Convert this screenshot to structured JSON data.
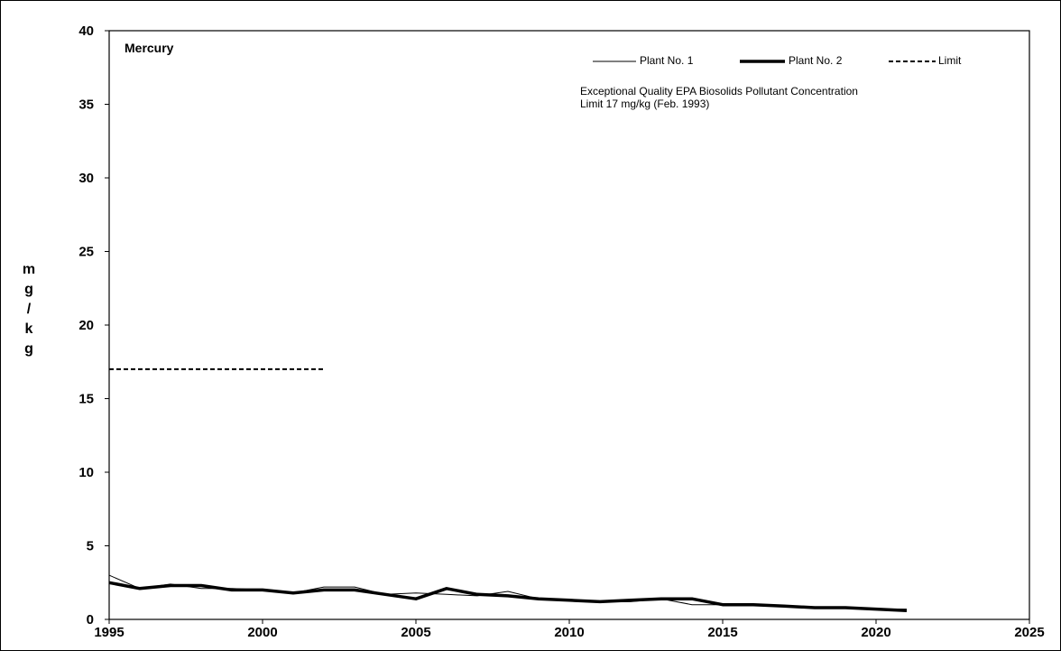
{
  "chart_data": {
    "type": "line",
    "title": "Mercury",
    "ylabel": "mg/kg",
    "ylabel_letters": [
      "m",
      "g",
      "/",
      "k",
      "g"
    ],
    "xlim": [
      1995,
      2025
    ],
    "ylim": [
      0,
      40
    ],
    "x_ticks": [
      "1995",
      "2000",
      "2005",
      "2010",
      "2015",
      "2020",
      "2025"
    ],
    "y_ticks": [
      "0",
      "5",
      "10",
      "15",
      "20",
      "25",
      "30",
      "35",
      "40"
    ],
    "legend_position": "top-right",
    "grid": false,
    "annotation": "Exceptional Quality EPA Biosolids Pollutant Concentration\nLimit 17 mg/kg (Feb. 1993)",
    "series": [
      {
        "name": "Plant No. 1",
        "style": "thin",
        "color": "#000000",
        "x": [
          1995,
          1996,
          1997,
          1998,
          1999,
          2000,
          2001,
          2002,
          2003,
          2004,
          2005,
          2006,
          2007,
          2008,
          2009,
          2010,
          2011,
          2012,
          2013,
          2014,
          2015,
          2016,
          2017,
          2018,
          2019,
          2020,
          2021
        ],
        "values": [
          3.0,
          2.1,
          2.4,
          2.1,
          2.1,
          2.0,
          1.8,
          2.2,
          2.2,
          1.7,
          1.8,
          1.7,
          1.6,
          1.9,
          1.4,
          1.3,
          1.2,
          1.2,
          1.4,
          1.0,
          1.0,
          1.0,
          0.9,
          0.8,
          0.8,
          0.7,
          0.7
        ]
      },
      {
        "name": "Plant No. 2",
        "style": "thick",
        "color": "#000000",
        "x": [
          1995,
          1996,
          1997,
          1998,
          1999,
          2000,
          2001,
          2002,
          2003,
          2004,
          2005,
          2006,
          2007,
          2008,
          2009,
          2010,
          2011,
          2012,
          2013,
          2014,
          2015,
          2016,
          2017,
          2018,
          2019,
          2020,
          2021
        ],
        "values": [
          2.5,
          2.1,
          2.3,
          2.3,
          2.0,
          2.0,
          1.8,
          2.0,
          2.0,
          1.7,
          1.4,
          2.1,
          1.7,
          1.6,
          1.4,
          1.3,
          1.2,
          1.3,
          1.4,
          1.4,
          1.0,
          1.0,
          0.9,
          0.8,
          0.8,
          0.7,
          0.6
        ]
      },
      {
        "name": "Limit",
        "style": "dashed",
        "color": "#000000",
        "x": [
          1995,
          2002
        ],
        "values": [
          17,
          17
        ]
      }
    ]
  }
}
